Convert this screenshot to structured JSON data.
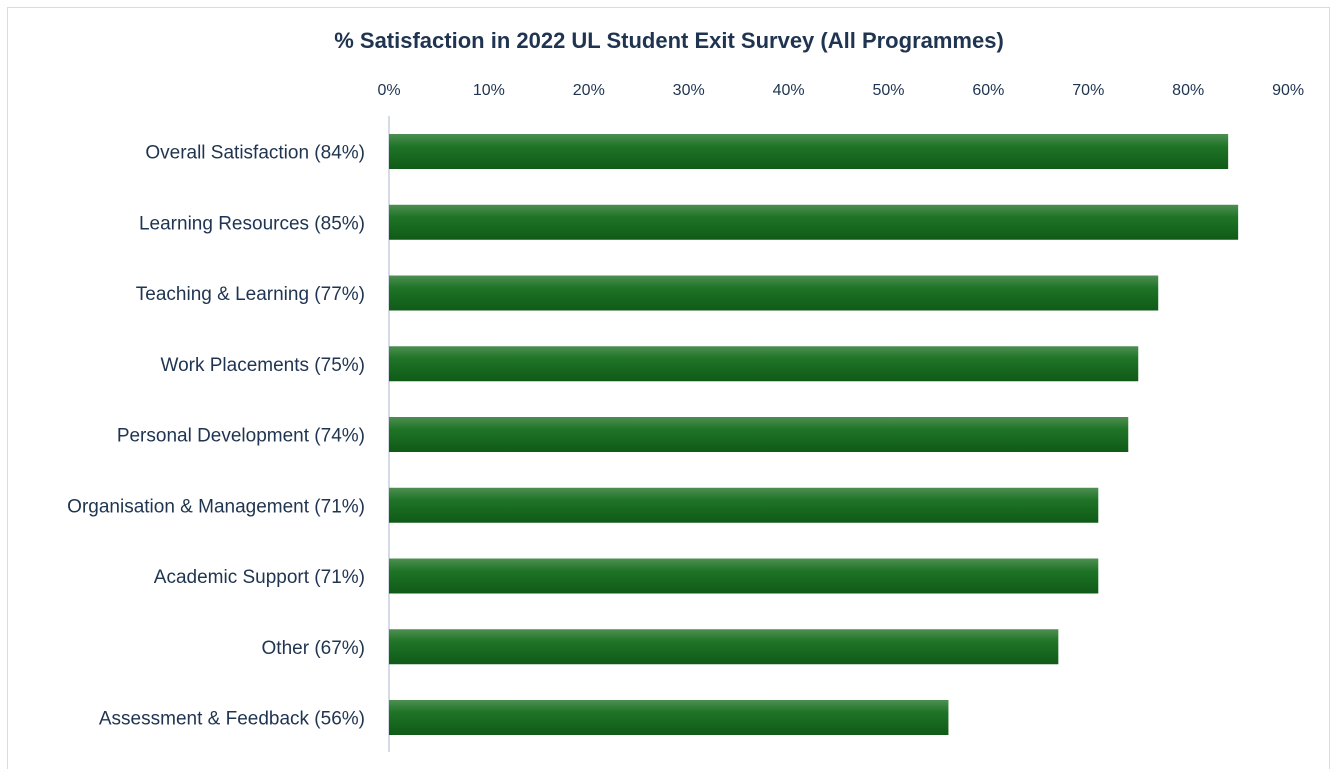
{
  "chart_data": {
    "type": "bar",
    "orientation": "horizontal",
    "title": "% Satisfaction in 2022 UL Student Exit Survey (All Programmes)",
    "categories": [
      "Overall Satisfaction (84%)",
      "Learning Resources (85%)",
      "Teaching & Learning (77%)",
      "Work Placements (75%)",
      "Personal Development (74%)",
      "Organisation & Management (71%)",
      "Academic Support (71%)",
      "Other (67%)",
      "Assessment & Feedback (56%)"
    ],
    "values": [
      84,
      85,
      77,
      75,
      74,
      71,
      71,
      67,
      56
    ],
    "xlim": [
      0,
      90
    ],
    "xticks": [
      "0%",
      "10%",
      "20%",
      "30%",
      "40%",
      "50%",
      "60%",
      "70%",
      "80%",
      "90%"
    ],
    "xaxis_position": "top",
    "grid": false,
    "legend": "none",
    "bar_color": "#1c6b23"
  }
}
